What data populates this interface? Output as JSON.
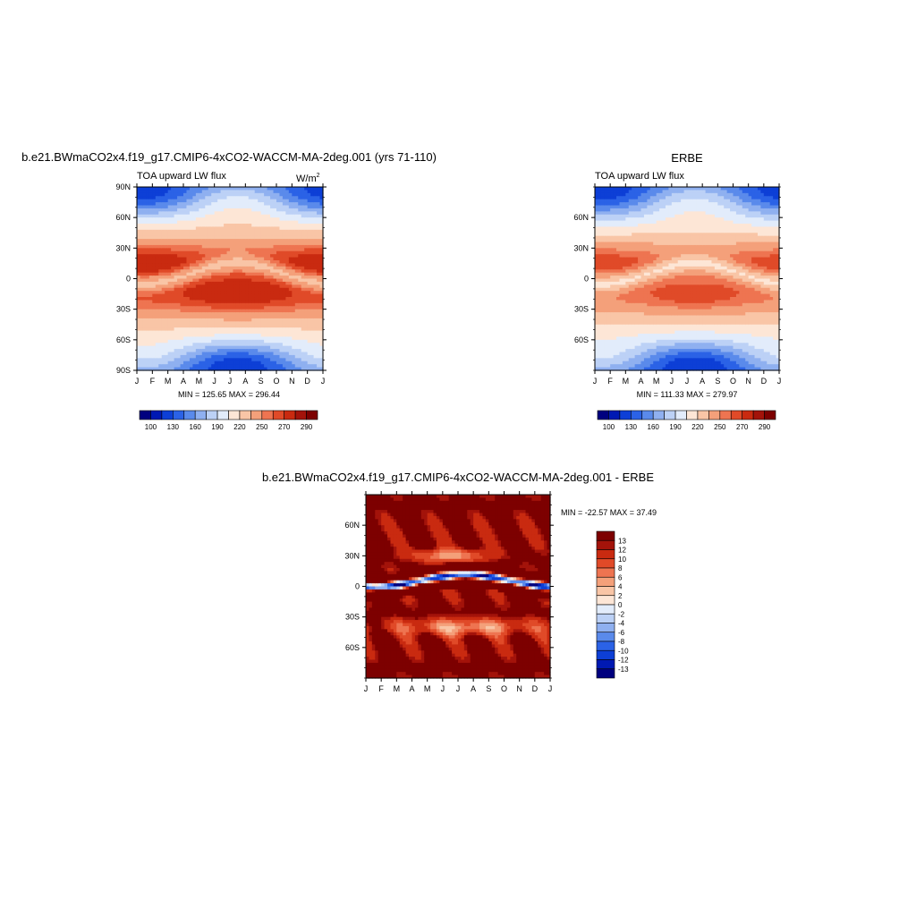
{
  "colors": {
    "ramp": [
      "#00007f",
      "#0019b3",
      "#0d3fd6",
      "#2b62e6",
      "#5a8aeb",
      "#8fb0f0",
      "#bcd1f6",
      "#e2ecfb",
      "#fde6d6",
      "#f9c5a6",
      "#f4a07a",
      "#ee7451",
      "#e04a28",
      "#c92a10",
      "#a3130a",
      "#7d0000"
    ]
  },
  "panels": [
    {
      "title": "b.e21.BWmaCO2x4.f19_g17.CMIP6-4xCO2-WACCM-MA-2deg.001 (yrs 71-110)",
      "subtitle": "TOA upward LW flux",
      "units_base": "W/m",
      "units_exp": "2",
      "minmax": "MIN = 125.65 MAX = 296.44",
      "y_ticks": [
        "90N",
        "60N",
        "30N",
        "0",
        "30S",
        "60S",
        "90S"
      ],
      "x_ticks": [
        "J",
        "F",
        "M",
        "A",
        "M",
        "J",
        "J",
        "A",
        "S",
        "O",
        "N",
        "D",
        "J"
      ],
      "colorbar_labels": [
        "100",
        "130",
        "160",
        "190",
        "220",
        "250",
        "270",
        "290"
      ]
    },
    {
      "title": "ERBE",
      "subtitle": "TOA upward LW flux",
      "minmax": "MIN = 111.33 MAX = 279.97",
      "y_ticks": [
        "60N",
        "30N",
        "0",
        "30S",
        "60S"
      ],
      "x_ticks": [
        "J",
        "F",
        "M",
        "A",
        "M",
        "J",
        "J",
        "A",
        "S",
        "O",
        "N",
        "D",
        "J"
      ],
      "colorbar_labels": [
        "100",
        "130",
        "160",
        "190",
        "220",
        "250",
        "270",
        "290"
      ]
    },
    {
      "title": "b.e21.BWmaCO2x4.f19_g17.CMIP6-4xCO2-WACCM-MA-2deg.001 - ERBE",
      "minmax": "MIN = -22.57 MAX =  37.49",
      "y_ticks": [
        "60N",
        "30N",
        "0",
        "30S",
        "60S"
      ],
      "x_ticks": [
        "J",
        "F",
        "M",
        "A",
        "M",
        "J",
        "J",
        "A",
        "S",
        "O",
        "N",
        "D",
        "J"
      ],
      "colorbar_labels": [
        "13",
        "12",
        "10",
        "8",
        "6",
        "4",
        "2",
        "0",
        "-2",
        "-4",
        "-6",
        "-8",
        "-10",
        "-12",
        "-13"
      ]
    }
  ],
  "chart_data": [
    {
      "type": "heatmap",
      "title": "b.e21.BWmaCO2x4.f19_g17.CMIP6-4xCO2-WACCM-MA-2deg.001 (yrs 71-110)",
      "x_categories": [
        "J",
        "F",
        "M",
        "A",
        "M",
        "J",
        "J",
        "A",
        "S",
        "O",
        "N",
        "D",
        "J"
      ],
      "y_range": [
        -90,
        90
      ],
      "min": 125.65,
      "max": 296.44,
      "levels": [
        100,
        115,
        130,
        145,
        160,
        175,
        190,
        205,
        220,
        235,
        250,
        260,
        270,
        280,
        290
      ]
    },
    {
      "type": "heatmap",
      "title": "ERBE",
      "x_categories": [
        "J",
        "F",
        "M",
        "A",
        "M",
        "J",
        "J",
        "A",
        "S",
        "O",
        "N",
        "D",
        "J"
      ],
      "y_range": [
        -90,
        90
      ],
      "min": 111.33,
      "max": 279.97,
      "levels": [
        100,
        115,
        130,
        145,
        160,
        175,
        190,
        205,
        220,
        235,
        250,
        260,
        270,
        280,
        290
      ]
    },
    {
      "type": "heatmap",
      "title": "b.e21.BWmaCO2x4.f19_g17.CMIP6-4xCO2-WACCM-MA-2deg.001 - ERBE",
      "x_categories": [
        "J",
        "F",
        "M",
        "A",
        "M",
        "J",
        "J",
        "A",
        "S",
        "O",
        "N",
        "D",
        "J"
      ],
      "y_range": [
        -90,
        90
      ],
      "min": -22.57,
      "max": 37.49,
      "levels": [
        -13,
        -12,
        -10,
        -8,
        -6,
        -4,
        -2,
        0,
        2,
        4,
        6,
        8,
        10,
        12,
        13
      ]
    }
  ]
}
